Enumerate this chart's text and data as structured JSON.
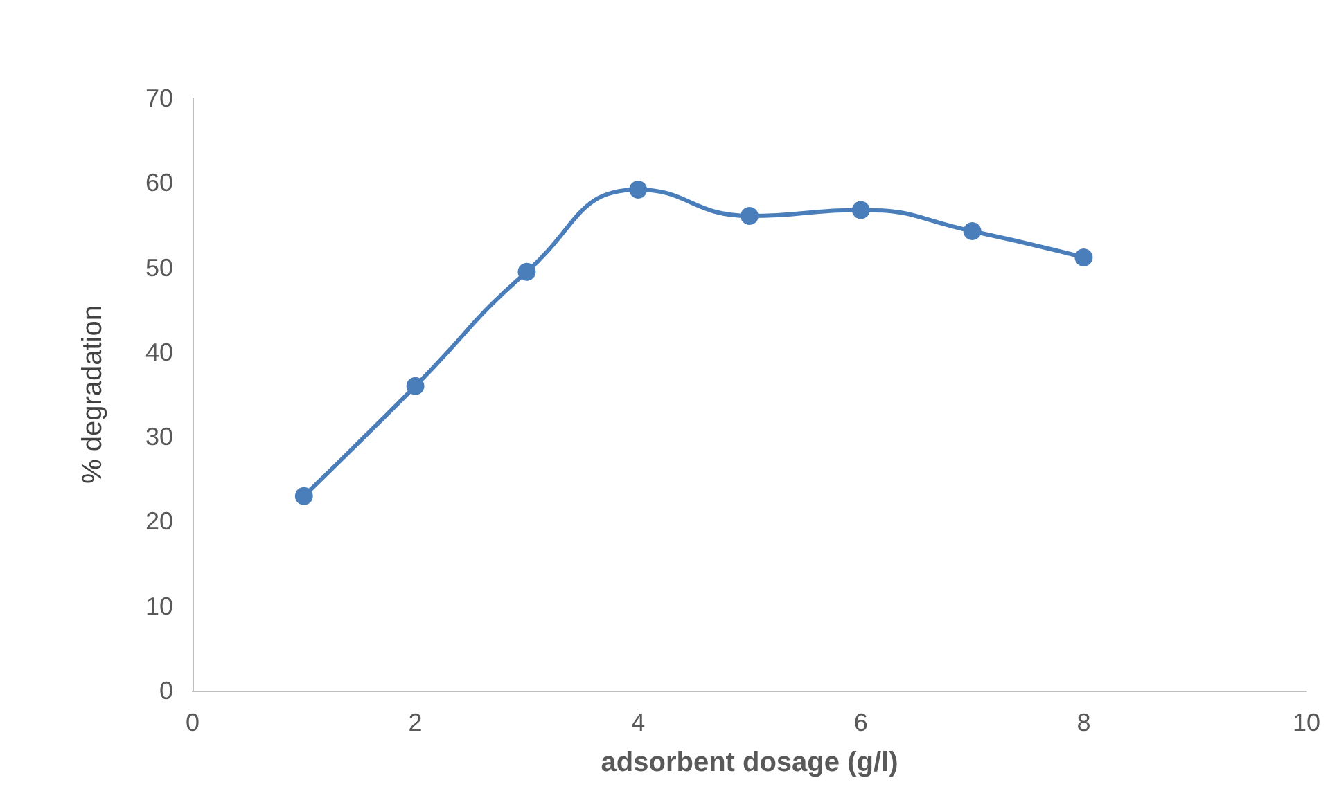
{
  "chart_data": {
    "type": "line",
    "xlabel": "adsorbent dosage (g/l)",
    "ylabel": "% degradation",
    "x": [
      1,
      2,
      3,
      4,
      5,
      6,
      7,
      8
    ],
    "series": [
      {
        "color": "#4a7ebb",
        "values": [
          23,
          36,
          49.5,
          59.2,
          56.1,
          56.8,
          54.3,
          51.2
        ]
      }
    ],
    "xlim": [
      0,
      10
    ],
    "xticks": [
      0,
      2,
      4,
      6,
      8,
      10
    ],
    "ylim": [
      0,
      70
    ],
    "yticks": [
      0,
      10,
      20,
      30,
      40,
      50,
      60,
      70
    ],
    "grid": false,
    "marker": "circle",
    "line_style": "solid"
  }
}
